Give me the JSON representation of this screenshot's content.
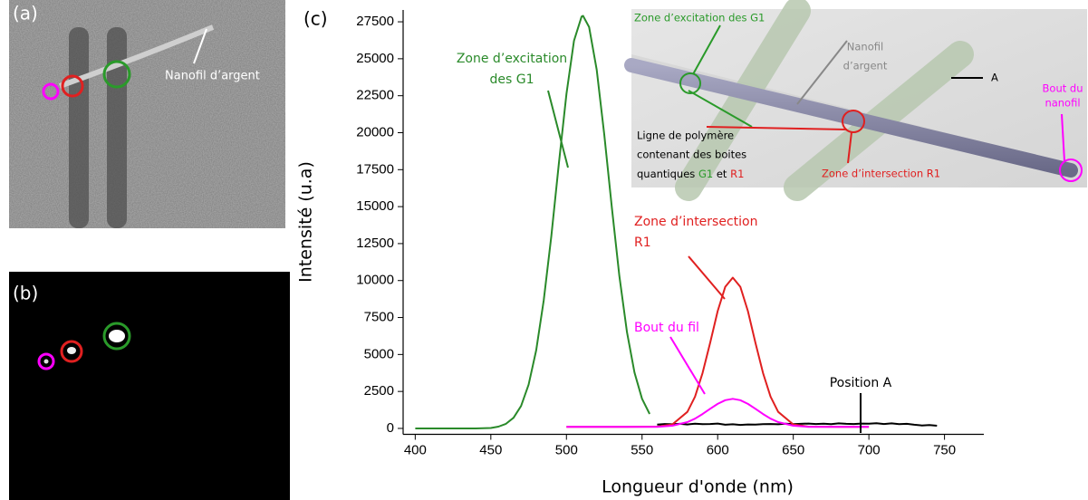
{
  "panels": {
    "a": {
      "label": "(a)",
      "annotation": "Nanofil d’argent"
    },
    "b": {
      "label": "(b)"
    }
  },
  "chart_data": {
    "type": "line",
    "label": "(c)",
    "xlabel": "Longueur d'onde (nm)",
    "ylabel": "Intensité (u.a)",
    "xlim": [
      392,
      776
    ],
    "ylim": [
      -400,
      28300
    ],
    "xticks": [
      400,
      450,
      500,
      550,
      600,
      650,
      700,
      750
    ],
    "yticks": [
      0,
      2500,
      5000,
      7500,
      10000,
      12500,
      15000,
      17500,
      20000,
      22500,
      25000,
      27500
    ],
    "series": [
      {
        "name": "Zone d’excitation des G1",
        "color": "#2a8a2a",
        "x": [
          400,
          420,
          440,
          450,
          455,
          460,
          465,
          470,
          475,
          480,
          485,
          490,
          495,
          500,
          505,
          510,
          511,
          515,
          520,
          525,
          530,
          535,
          540,
          545,
          550,
          555
        ],
        "values": [
          0,
          0,
          0,
          30,
          120,
          310,
          720,
          1520,
          2960,
          5290,
          8660,
          13010,
          17910,
          22630,
          26220,
          27850,
          27900,
          27140,
          24250,
          19880,
          14940,
          10300,
          6510,
          3780,
          2010,
          980
        ]
      },
      {
        "name": "Zone d’intersection R1",
        "color": "#e02020",
        "x": [
          500,
          520,
          540,
          560,
          570,
          580,
          585,
          590,
          595,
          600,
          605,
          610,
          615,
          620,
          625,
          630,
          635,
          640,
          650,
          660,
          680,
          700
        ],
        "values": [
          100,
          100,
          100,
          120,
          270,
          1120,
          2150,
          3740,
          5790,
          7930,
          9580,
          10200,
          9580,
          7930,
          5790,
          3740,
          2150,
          1120,
          270,
          120,
          100,
          100
        ]
      },
      {
        "name": "Bout du fil",
        "color": "#ff00ff",
        "x": [
          500,
          520,
          540,
          560,
          570,
          580,
          585,
          590,
          595,
          600,
          605,
          610,
          615,
          620,
          625,
          630,
          635,
          640,
          650,
          660,
          680,
          700
        ],
        "values": [
          100,
          100,
          100,
          110,
          180,
          430,
          660,
          970,
          1330,
          1660,
          1910,
          2000,
          1910,
          1660,
          1330,
          970,
          660,
          430,
          180,
          110,
          100,
          100
        ]
      },
      {
        "name": "Position A",
        "color": "#000000",
        "x": [
          560,
          565,
          570,
          575,
          580,
          585,
          590,
          595,
          600,
          605,
          610,
          615,
          620,
          625,
          630,
          635,
          640,
          645,
          650,
          655,
          660,
          665,
          670,
          675,
          680,
          685,
          690,
          695,
          700,
          705,
          710,
          715,
          720,
          725,
          730,
          735,
          740,
          745
        ],
        "values": [
          260,
          300,
          280,
          310,
          270,
          320,
          290,
          300,
          330,
          250,
          280,
          240,
          270,
          260,
          290,
          300,
          280,
          320,
          290,
          310,
          330,
          300,
          320,
          290,
          340,
          310,
          300,
          330,
          320,
          350,
          300,
          340,
          290,
          310,
          250,
          200,
          230,
          180
        ]
      }
    ],
    "annotations": [
      {
        "lines": [
          "Zone d’excitation",
          "des G1"
        ],
        "color": "#2a8a2a"
      },
      {
        "lines": [
          "Zone d’intersection",
          "R1"
        ],
        "color": "#e02020"
      },
      {
        "lines": [
          "Bout du fil"
        ],
        "color": "#ff00ff"
      },
      {
        "lines": [
          "Position A"
        ],
        "color": "#000000"
      }
    ]
  },
  "inset": {
    "excitation": "Zone d’excitation des G1",
    "nanowire": [
      "Nanofil",
      "d’argent"
    ],
    "point_a": "A",
    "tip": [
      "Bout du",
      "nanofil"
    ],
    "polymer": [
      "Ligne de polymère",
      "contenant des boites"
    ],
    "polymer_last": [
      "quantiques ",
      "G1",
      " et ",
      "R1"
    ],
    "intersection": "Zone d’intersection R1"
  }
}
